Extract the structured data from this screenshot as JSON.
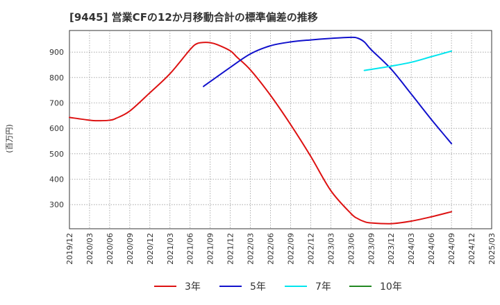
{
  "chart_data": {
    "type": "line",
    "title": "[9445]  営業CFの12か月移動合計の標準偏差の推移",
    "ylabel": "(百万円)",
    "xlabel": "",
    "ylim": [
      205,
      985
    ],
    "yticks": [
      300,
      400,
      500,
      600,
      700,
      800,
      900
    ],
    "x_ticks": [
      "2019/12",
      "2020/03",
      "2020/06",
      "2020/09",
      "2020/12",
      "2021/03",
      "2021/06",
      "2021/09",
      "2021/12",
      "2022/03",
      "2022/06",
      "2022/09",
      "2022/12",
      "2023/03",
      "2023/06",
      "2023/09",
      "2023/12",
      "2024/03",
      "2024/06",
      "2024/09",
      "2024/12",
      "2025/03"
    ],
    "grid": true,
    "legend_position": "bottom",
    "series": [
      {
        "name": "3年",
        "color": "#dd1111",
        "x": [
          "2019/12",
          "2020/03",
          "2020/04",
          "2020/06",
          "2020/07",
          "2020/09",
          "2020/12",
          "2021/03",
          "2021/06",
          "2021/07",
          "2021/08",
          "2021/09",
          "2021/10",
          "2021/12",
          "2022/01",
          "2022/03",
          "2022/06",
          "2022/09",
          "2022/12",
          "2023/03",
          "2023/06",
          "2023/07",
          "2023/08",
          "2023/09",
          "2023/12",
          "2024/03",
          "2024/06",
          "2024/09"
        ],
        "values": [
          643,
          632,
          630,
          632,
          640,
          668,
          740,
          815,
          910,
          933,
          938,
          937,
          930,
          905,
          880,
          830,
          730,
          615,
          490,
          355,
          265,
          245,
          233,
          228,
          225,
          235,
          252,
          272
        ]
      },
      {
        "name": "5年",
        "color": "#1111cc",
        "x": [
          "2021/08",
          "2021/12",
          "2022/03",
          "2022/06",
          "2022/09",
          "2022/12",
          "2023/03",
          "2023/06",
          "2023/07",
          "2023/08",
          "2023/09",
          "2023/12",
          "2024/03",
          "2024/06",
          "2024/09"
        ],
        "values": [
          765,
          840,
          893,
          925,
          940,
          948,
          954,
          958,
          955,
          940,
          910,
          833,
          735,
          635,
          540
        ]
      },
      {
        "name": "7年",
        "color": "#00e5ee",
        "x": [
          "2023/08",
          "2023/09",
          "2023/12",
          "2024/03",
          "2024/06",
          "2024/09"
        ],
        "values": [
          828,
          832,
          845,
          860,
          882,
          904
        ]
      },
      {
        "name": "10年",
        "color": "#228822",
        "x": [],
        "values": []
      }
    ]
  }
}
